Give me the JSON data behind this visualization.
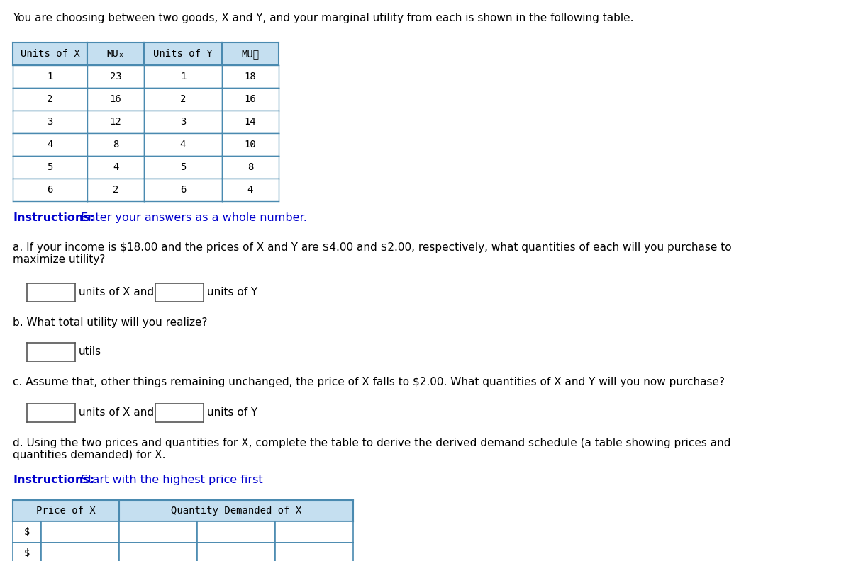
{
  "intro_text": "You are choosing between two goods, X and Y, and your marginal utility from each is shown in the following table.",
  "table1_data": [
    [
      "1",
      "23",
      "1",
      "18"
    ],
    [
      "2",
      "16",
      "2",
      "16"
    ],
    [
      "3",
      "12",
      "3",
      "14"
    ],
    [
      "4",
      "8",
      "4",
      "10"
    ],
    [
      "5",
      "4",
      "5",
      "8"
    ],
    [
      "6",
      "2",
      "6",
      "4"
    ]
  ],
  "header_bg": "#c5dff0",
  "header_border": "#4a8ab0",
  "cell_bg": "#ffffff",
  "cell_border": "#4a8ab0",
  "instructions_bold": "Instructions:",
  "instructions_text": " Enter your answers as a whole number.",
  "instructions2_text": " Start with the highest price first",
  "instr_color": "#0000cc",
  "qa_a": "a. If your income is $18.00 and the prices of X and Y are $4.00 and $2.00, respectively, what quantities of each will you purchase to\nmaximize utility?",
  "qa_b": "b. What total utility will you realize?",
  "qa_c": "c. Assume that, other things remaining unchanged, the price of X falls to $2.00. What quantities of X and Y will you now purchase?",
  "qa_d": "d. Using the two prices and quantities for X, complete the table to derive the derived demand schedule (a table showing prices and\nquantities demanded) for X.",
  "bg_color": "#ffffff",
  "text_color": "#000000"
}
